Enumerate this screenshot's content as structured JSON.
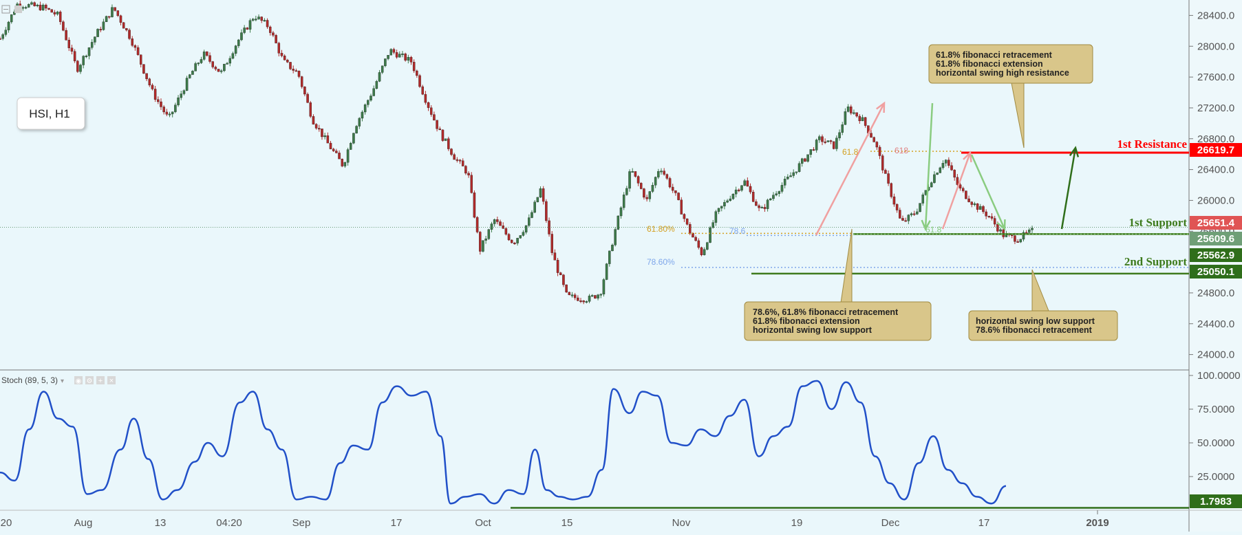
{
  "instrument": {
    "label": "HSI, H1"
  },
  "window_controls": {
    "collapse_icon": "collapse-icon",
    "settings_icon": "square-icon"
  },
  "indicator": {
    "label": "Stoch (89, 5, 3)",
    "buttons": [
      "eye-icon",
      "gear-icon",
      "plus-icon",
      "close-icon"
    ]
  },
  "colors": {
    "background": "#eaf7fb",
    "bull": "#3d7a4a",
    "bear": "#b02a2a",
    "resistance": "#ff0000",
    "support": "#3d7a1c",
    "stoch_line": "#2150c8",
    "annotation_fill": "#d9c68a",
    "annotation_border": "#a08a40"
  },
  "levels": {
    "resistance": {
      "label": "1st Resistance",
      "value": "26619.7"
    },
    "support1": {
      "label": "1st Support",
      "value": "25562.9"
    },
    "support2": {
      "label": "2nd Support",
      "value": "25050.1"
    },
    "current_price": {
      "value": "25651.4"
    },
    "current_close": {
      "value": "25609.6"
    },
    "stoch_level": {
      "value": "1.7983"
    }
  },
  "fib_labels": {
    "fib618_left": "61.80%",
    "fib786_left_1": "78.6",
    "fib786_left_2": "78.60%",
    "fib618_right": "61.8",
    "fib618_right_b": "618",
    "fib_green": "61.8"
  },
  "annotations": {
    "resistance_box": [
      "61.8% fibonacci retracement",
      "61.8% fibonacci extension",
      "horizontal swing high resistance"
    ],
    "support1_box": [
      "78.6%, 61.8% fibonacci retracement",
      "61.8% fibonacci extension",
      "horizontal swing low support"
    ],
    "support2_box": [
      "horizontal swing low support",
      "78.6% fibonacci retracement"
    ]
  },
  "chart_data": {
    "type": "candlestick",
    "title": "HSI, H1",
    "price_axis": {
      "ticks": [
        "28400.0",
        "28000.0",
        "27600.0",
        "27200.0",
        "26800.0",
        "26400.0",
        "26000.0",
        "25600.0",
        "24800.0",
        "24400.0",
        "24000.0"
      ],
      "range": [
        23800,
        28600
      ]
    },
    "stoch_axis": {
      "ticks": [
        "100.0000",
        "75.0000",
        "50.0000",
        "25.0000"
      ],
      "range": [
        0,
        100
      ]
    },
    "x_axis": {
      "ticks": [
        "20",
        "Aug",
        "13",
        "04:20",
        "Sep",
        "17",
        "Oct",
        "15",
        "Nov",
        "19",
        "Dec",
        "17",
        "2019"
      ]
    },
    "price_path": [
      {
        "t": 0,
        "p": 28100
      },
      {
        "t": 1.2,
        "p": 28550
      },
      {
        "t": 3,
        "p": 28500
      },
      {
        "t": 4,
        "p": 28400
      },
      {
        "t": 5.3,
        "p": 27700
      },
      {
        "t": 6.6,
        "p": 28150
      },
      {
        "t": 7.8,
        "p": 28500
      },
      {
        "t": 9,
        "p": 28100
      },
      {
        "t": 10.5,
        "p": 27400
      },
      {
        "t": 11.6,
        "p": 27050
      },
      {
        "t": 13,
        "p": 27600
      },
      {
        "t": 14,
        "p": 27900
      },
      {
        "t": 15.2,
        "p": 27650
      },
      {
        "t": 16.3,
        "p": 28050
      },
      {
        "t": 17.5,
        "p": 28400
      },
      {
        "t": 18.5,
        "p": 28250
      },
      {
        "t": 19.5,
        "p": 27800
      },
      {
        "t": 20.5,
        "p": 27650
      },
      {
        "t": 21.5,
        "p": 27050
      },
      {
        "t": 22.5,
        "p": 26750
      },
      {
        "t": 23.6,
        "p": 26450
      },
      {
        "t": 24.4,
        "p": 26950
      },
      {
        "t": 25.7,
        "p": 27450
      },
      {
        "t": 26.8,
        "p": 27950
      },
      {
        "t": 28.3,
        "p": 27800
      },
      {
        "t": 29.3,
        "p": 27300
      },
      {
        "t": 30.2,
        "p": 26900
      },
      {
        "t": 31.3,
        "p": 26550
      },
      {
        "t": 32.2,
        "p": 26350
      },
      {
        "t": 33,
        "p": 25350
      },
      {
        "t": 34,
        "p": 25750
      },
      {
        "t": 35.3,
        "p": 25450
      },
      {
        "t": 36.3,
        "p": 25700
      },
      {
        "t": 37.2,
        "p": 26150
      },
      {
        "t": 38,
        "p": 25300
      },
      {
        "t": 39,
        "p": 24750
      },
      {
        "t": 40.5,
        "p": 24720
      },
      {
        "t": 41.3,
        "p": 24800
      },
      {
        "t": 42.3,
        "p": 25600
      },
      {
        "t": 43.4,
        "p": 26400
      },
      {
        "t": 44.5,
        "p": 26000
      },
      {
        "t": 45.4,
        "p": 26450
      },
      {
        "t": 46.5,
        "p": 26050
      },
      {
        "t": 47.3,
        "p": 25650
      },
      {
        "t": 48.3,
        "p": 25300
      },
      {
        "t": 49.2,
        "p": 25800
      },
      {
        "t": 50.2,
        "p": 26050
      },
      {
        "t": 51.2,
        "p": 26250
      },
      {
        "t": 52.3,
        "p": 25850
      },
      {
        "t": 53.3,
        "p": 26100
      },
      {
        "t": 54.3,
        "p": 26300
      },
      {
        "t": 55.4,
        "p": 26550
      },
      {
        "t": 56.4,
        "p": 26800
      },
      {
        "t": 57.4,
        "p": 26700
      },
      {
        "t": 58.3,
        "p": 27200
      },
      {
        "t": 59.3,
        "p": 27050
      },
      {
        "t": 60.2,
        "p": 26750
      },
      {
        "t": 61,
        "p": 26250
      },
      {
        "t": 62,
        "p": 25700
      },
      {
        "t": 63,
        "p": 25850
      },
      {
        "t": 64,
        "p": 26250
      },
      {
        "t": 65,
        "p": 26550
      },
      {
        "t": 66,
        "p": 26150
      },
      {
        "t": 67,
        "p": 25950
      },
      {
        "t": 68,
        "p": 25800
      },
      {
        "t": 69,
        "p": 25550
      },
      {
        "t": 70,
        "p": 25500
      },
      {
        "t": 71,
        "p": 25600
      }
    ],
    "stoch_path": [
      {
        "t": 0,
        "v": 28
      },
      {
        "t": 1,
        "v": 22
      },
      {
        "t": 2,
        "v": 60
      },
      {
        "t": 3,
        "v": 88
      },
      {
        "t": 4,
        "v": 68
      },
      {
        "t": 5,
        "v": 62
      },
      {
        "t": 6,
        "v": 12
      },
      {
        "t": 7,
        "v": 15
      },
      {
        "t": 8.3,
        "v": 45
      },
      {
        "t": 9.2,
        "v": 68
      },
      {
        "t": 10.2,
        "v": 38
      },
      {
        "t": 11.2,
        "v": 8
      },
      {
        "t": 12.2,
        "v": 15
      },
      {
        "t": 13.4,
        "v": 36
      },
      {
        "t": 14.3,
        "v": 50
      },
      {
        "t": 15.3,
        "v": 40
      },
      {
        "t": 16.5,
        "v": 80
      },
      {
        "t": 17.4,
        "v": 88
      },
      {
        "t": 18.4,
        "v": 60
      },
      {
        "t": 19.4,
        "v": 45
      },
      {
        "t": 20.4,
        "v": 8
      },
      {
        "t": 21.4,
        "v": 10
      },
      {
        "t": 22.4,
        "v": 8
      },
      {
        "t": 23.4,
        "v": 35
      },
      {
        "t": 24.3,
        "v": 48
      },
      {
        "t": 25.3,
        "v": 45
      },
      {
        "t": 26.3,
        "v": 80
      },
      {
        "t": 27.3,
        "v": 92
      },
      {
        "t": 28.3,
        "v": 85
      },
      {
        "t": 29.3,
        "v": 88
      },
      {
        "t": 30.3,
        "v": 55
      },
      {
        "t": 31,
        "v": 5
      },
      {
        "t": 32,
        "v": 10
      },
      {
        "t": 33,
        "v": 12
      },
      {
        "t": 34,
        "v": 5
      },
      {
        "t": 35,
        "v": 15
      },
      {
        "t": 36,
        "v": 12
      },
      {
        "t": 36.8,
        "v": 45
      },
      {
        "t": 37.6,
        "v": 15
      },
      {
        "t": 38.5,
        "v": 10
      },
      {
        "t": 39.4,
        "v": 8
      },
      {
        "t": 40.4,
        "v": 10
      },
      {
        "t": 41.4,
        "v": 30
      },
      {
        "t": 42.2,
        "v": 90
      },
      {
        "t": 43.3,
        "v": 72
      },
      {
        "t": 44.2,
        "v": 88
      },
      {
        "t": 45.2,
        "v": 85
      },
      {
        "t": 46.2,
        "v": 50
      },
      {
        "t": 47.2,
        "v": 48
      },
      {
        "t": 48.2,
        "v": 60
      },
      {
        "t": 49.2,
        "v": 55
      },
      {
        "t": 50.2,
        "v": 70
      },
      {
        "t": 51.2,
        "v": 82
      },
      {
        "t": 52.2,
        "v": 40
      },
      {
        "t": 53.2,
        "v": 55
      },
      {
        "t": 54.2,
        "v": 62
      },
      {
        "t": 55.2,
        "v": 92
      },
      {
        "t": 56.2,
        "v": 96
      },
      {
        "t": 57.2,
        "v": 75
      },
      {
        "t": 58.2,
        "v": 95
      },
      {
        "t": 59.2,
        "v": 80
      },
      {
        "t": 60.2,
        "v": 40
      },
      {
        "t": 61.2,
        "v": 20
      },
      {
        "t": 62.2,
        "v": 8
      },
      {
        "t": 63.2,
        "v": 35
      },
      {
        "t": 64.2,
        "v": 55
      },
      {
        "t": 65.2,
        "v": 30
      },
      {
        "t": 66.2,
        "v": 20
      },
      {
        "t": 67.2,
        "v": 10
      },
      {
        "t": 68.2,
        "v": 5
      },
      {
        "t": 69.2,
        "v": 18
      }
    ]
  }
}
